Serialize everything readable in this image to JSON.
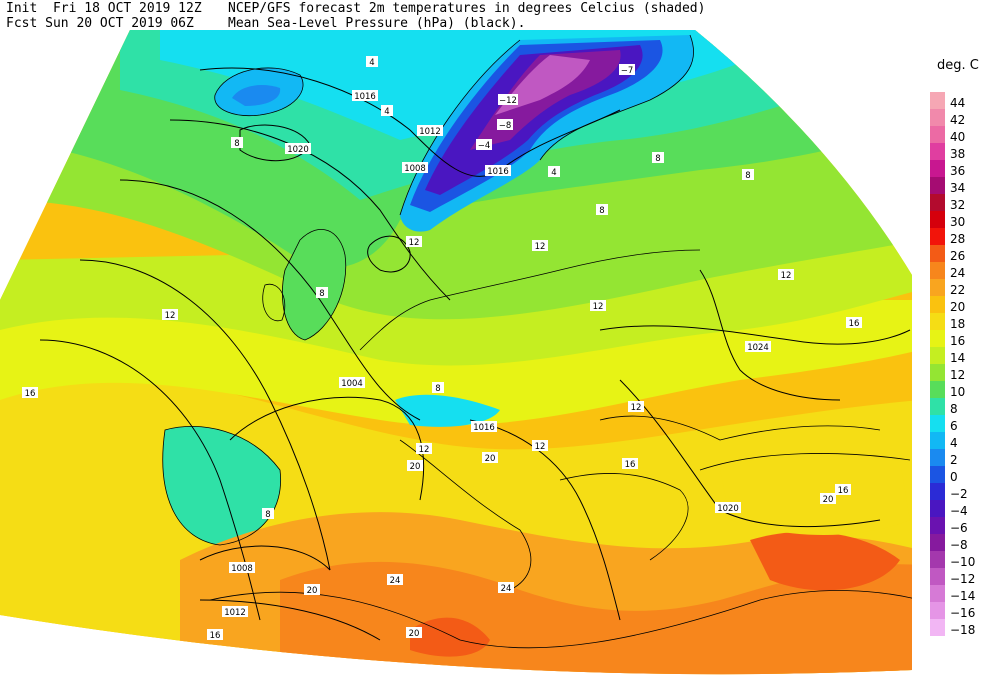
{
  "header": {
    "init": "Init  Fri 18 OCT 2019 12Z",
    "fcst": "Fcst Sun 20 OCT 2019 06Z",
    "title": "NCEP/GFS forecast 2m temperatures in degrees Celcius (shaded)",
    "subtitle": "Mean Sea-Level Pressure (hPa) (black)."
  },
  "legend": {
    "unit": "deg. C",
    "entries": [
      {
        "label": "44",
        "color": "#f6a7b4"
      },
      {
        "label": "42",
        "color": "#f189ab"
      },
      {
        "label": "40",
        "color": "#ec6aa4"
      },
      {
        "label": "38",
        "color": "#e03ea0"
      },
      {
        "label": "36",
        "color": "#c81790"
      },
      {
        "label": "34",
        "color": "#a50c72"
      },
      {
        "label": "32",
        "color": "#b30b2e"
      },
      {
        "label": "30",
        "color": "#d5000c"
      },
      {
        "label": "28",
        "color": "#f2140a"
      },
      {
        "label": "26",
        "color": "#f35b16"
      },
      {
        "label": "24",
        "color": "#f7861c"
      },
      {
        "label": "22",
        "color": "#f9a51f"
      },
      {
        "label": "20",
        "color": "#fac20f"
      },
      {
        "label": "18",
        "color": "#f5dd15"
      },
      {
        "label": "16",
        "color": "#e7f315"
      },
      {
        "label": "14",
        "color": "#c5ee21"
      },
      {
        "label": "12",
        "color": "#94e533"
      },
      {
        "label": "10",
        "color": "#58dd5a"
      },
      {
        "label": "8",
        "color": "#2fe1a7"
      },
      {
        "label": "6",
        "color": "#15dff0"
      },
      {
        "label": "4",
        "color": "#12b8f4"
      },
      {
        "label": "2",
        "color": "#1a8af0"
      },
      {
        "label": "0",
        "color": "#1b55e3"
      },
      {
        "label": "−2",
        "color": "#2b2bd6"
      },
      {
        "label": "−4",
        "color": "#4a16c1"
      },
      {
        "label": "−6",
        "color": "#6a12b0"
      },
      {
        "label": "−8",
        "color": "#861a9e"
      },
      {
        "label": "−10",
        "color": "#a438ad"
      },
      {
        "label": "−12",
        "color": "#c058c2"
      },
      {
        "label": "−14",
        "color": "#d67ad6"
      },
      {
        "label": "−16",
        "color": "#e595e6"
      },
      {
        "label": "−18",
        "color": "#f2b6f4"
      }
    ]
  },
  "contour_labels": [
    {
      "text": "1016"
    },
    {
      "text": "1020"
    },
    {
      "text": "1012"
    },
    {
      "text": "1008"
    },
    {
      "text": "1016"
    },
    {
      "text": "1004"
    },
    {
      "text": "1016"
    },
    {
      "text": "1024"
    },
    {
      "text": "1020"
    },
    {
      "text": "1008"
    },
    {
      "text": "1012"
    }
  ],
  "temp_labels": [
    {
      "text": "4"
    },
    {
      "text": "4"
    },
    {
      "text": "8"
    },
    {
      "text": "−12"
    },
    {
      "text": "−8"
    },
    {
      "text": "−4"
    },
    {
      "text": "−7"
    },
    {
      "text": "4"
    },
    {
      "text": "8"
    },
    {
      "text": "8"
    },
    {
      "text": "12"
    },
    {
      "text": "12"
    },
    {
      "text": "12"
    },
    {
      "text": "12"
    },
    {
      "text": "12"
    },
    {
      "text": "16"
    },
    {
      "text": "16"
    },
    {
      "text": "12"
    },
    {
      "text": "8"
    },
    {
      "text": "12"
    },
    {
      "text": "16"
    },
    {
      "text": "20"
    },
    {
      "text": "20"
    },
    {
      "text": "24"
    },
    {
      "text": "20"
    },
    {
      "text": "20"
    },
    {
      "text": "16"
    },
    {
      "text": "16"
    },
    {
      "text": "12"
    },
    {
      "text": "20"
    },
    {
      "text": "24"
    },
    {
      "text": "8"
    },
    {
      "text": "8"
    },
    {
      "text": "8"
    }
  ]
}
